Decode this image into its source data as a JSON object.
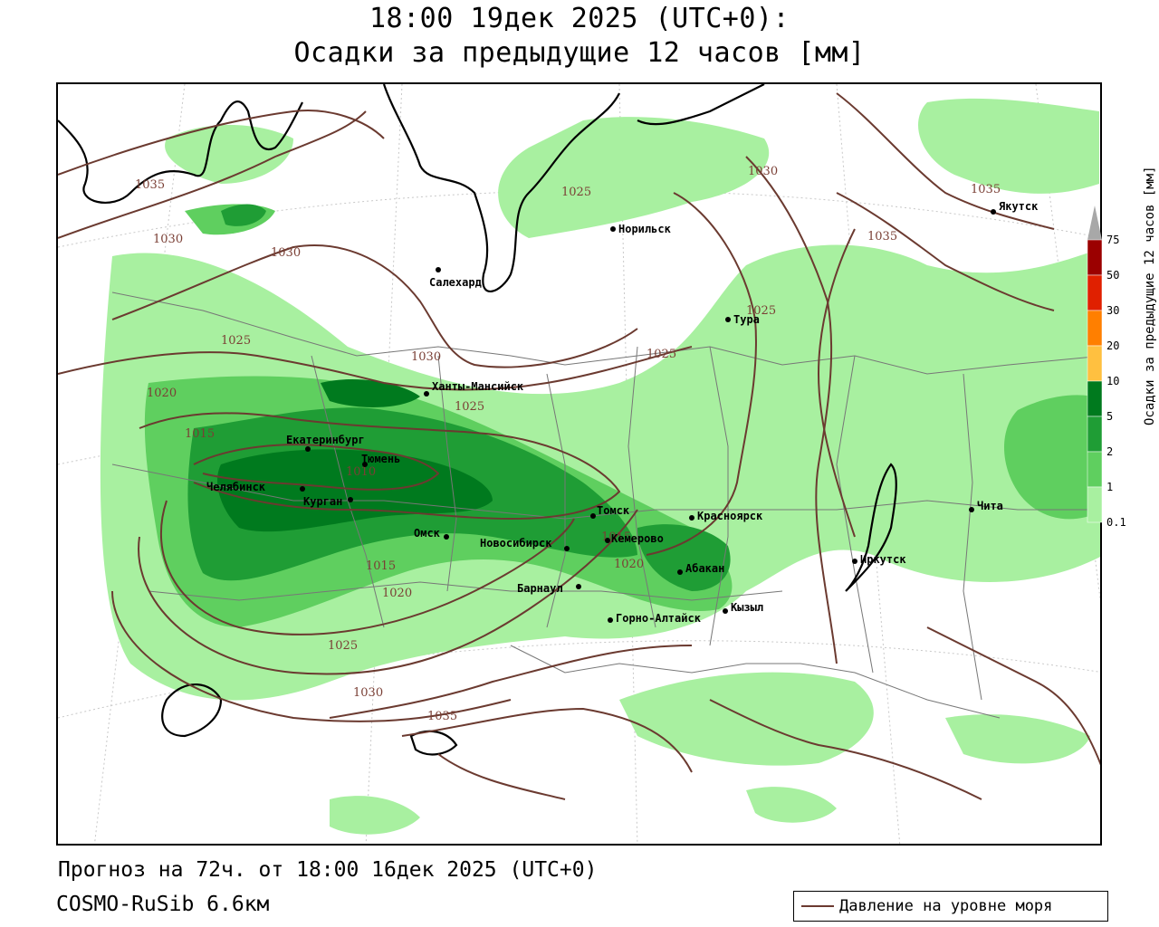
{
  "title": {
    "line1": "18:00 19дек 2025 (UTC+0):",
    "line2": "Осадки за предыдущие 12 часов [мм]"
  },
  "footer": {
    "forecast": "Прогноз на 72ч. от 18:00 16дек 2025 (UTC+0)",
    "model": "COSMO-RuSib 6.6км"
  },
  "legend": {
    "pressure_label": "Давление на уровне моря",
    "pressure_color": "#6b3a30"
  },
  "colorbar": {
    "title": "Осадки за предыдущие 12 часов [мм]",
    "ticks": [
      "75",
      "50",
      "30",
      "20",
      "10",
      "5",
      "2",
      "1",
      "0.1"
    ],
    "colors": {
      "over": "#a8a8a8",
      "c50_75": "#9b0000",
      "c30_50": "#e02000",
      "c20_30": "#ff7f00",
      "c10_20": "#ffc040",
      "c5_10": "#007a1e",
      "c2_5": "#1f9d35",
      "c1_2": "#5fcf5f",
      "c01_1": "#a8f0a0"
    }
  },
  "cities": [
    {
      "id": "norilsk",
      "name": "Норильск"
    },
    {
      "id": "yakutsk",
      "name": "Якутск"
    },
    {
      "id": "salekhard",
      "name": "Салехард"
    },
    {
      "id": "tura",
      "name": "Тура"
    },
    {
      "id": "khanty",
      "name": "Ханты-Мансийск"
    },
    {
      "id": "ekaterinburg",
      "name": "Екатеринбург"
    },
    {
      "id": "tyumen",
      "name": "Тюмень"
    },
    {
      "id": "chelyabinsk",
      "name": "Челябинск"
    },
    {
      "id": "kurgan",
      "name": "Курган"
    },
    {
      "id": "omsk",
      "name": "Омск"
    },
    {
      "id": "novosibirsk",
      "name": "Новосибирск"
    },
    {
      "id": "tomsk",
      "name": "Томск"
    },
    {
      "id": "kemerovo",
      "name": "Кемерово"
    },
    {
      "id": "krasnoyarsk",
      "name": "Красноярск"
    },
    {
      "id": "barnaul",
      "name": "Барнаул"
    },
    {
      "id": "abakan",
      "name": "Абакан"
    },
    {
      "id": "gorno",
      "name": "Горно-Алтайск"
    },
    {
      "id": "kyzyl",
      "name": "Кызыл"
    },
    {
      "id": "irkutsk",
      "name": "Иркутск"
    },
    {
      "id": "chita",
      "name": "Чита"
    }
  ],
  "isobar_labels": [
    "1035",
    "1030",
    "1025",
    "1035",
    "1015",
    "1020",
    "1030",
    "1025",
    "1030",
    "1025",
    "1035",
    "1030",
    "1025",
    "1020",
    "1015",
    "1010",
    "1015",
    "1020",
    "1025",
    "1030",
    "1035",
    "1015",
    "1020"
  ]
}
